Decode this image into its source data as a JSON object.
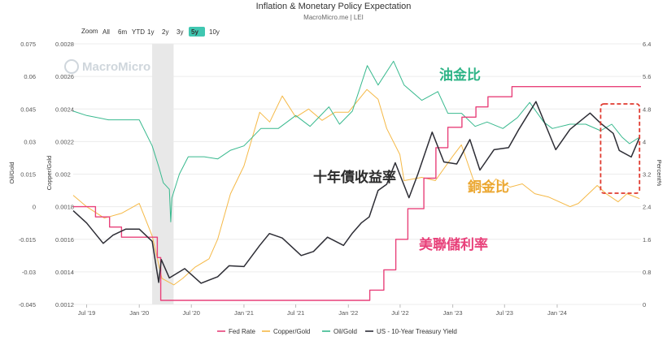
{
  "page": {
    "title": "Inflation & Monetary Policy Expectation",
    "subtitle": "MacroMicro.me | LEI",
    "watermark": "MacroMicro"
  },
  "zoom": {
    "label": "Zoom",
    "options": [
      "All",
      "6m",
      "YTD",
      "1y",
      "2y",
      "3y",
      "5y",
      "10y"
    ],
    "selected": "5y"
  },
  "colors": {
    "fed_rate": "#e8417a",
    "copper_gold": "#f5b947",
    "oil_gold": "#38b98e",
    "treasury": "#2d2d35",
    "anno_oil": "#2fb487",
    "anno_copper": "#eba731",
    "anno_treasury": "#2b2b2b",
    "anno_fed": "#e8417a",
    "highlight_box": "#e03a2f",
    "recession_band": "#e8e8e8"
  },
  "annotations": {
    "oil_gold": "油金比",
    "copper_gold": "銅金比",
    "treasury": "十年債收益率",
    "fed_rate": "美聯儲利率"
  },
  "chart_data": {
    "type": "line",
    "title": "Inflation & Monetary Policy Expectation",
    "subtitle": "MacroMicro.me | LEI",
    "x_range": [
      "2019-05-15",
      "2024-10-20"
    ],
    "x_ticks": [
      "Jul '19",
      "Jan '20",
      "Jul '20",
      "Jan '21",
      "Jul '21",
      "Jan '22",
      "Jul '22",
      "Jan '23",
      "Jul '23",
      "Jan '24"
    ],
    "axes": {
      "oil_gold": {
        "label": "Oil/Gold",
        "min": -0.045,
        "max": 0.075,
        "ticks": [
          "0.075",
          "0.06",
          "0.045",
          "0.03",
          "0.015",
          "0",
          "-0.015",
          "-0.03",
          "-0.045"
        ]
      },
      "copper_gold": {
        "label": "Copper/Gold",
        "min": 0.0012,
        "max": 0.0028,
        "ticks": [
          "0.0028",
          "0.0026",
          "0.0024",
          "0.0022",
          "0.002",
          "0.0018",
          "0.0016",
          "0.0014",
          "0.0012"
        ]
      },
      "percent": {
        "label": "Percent%",
        "min": 0,
        "max": 6.4,
        "ticks": [
          "6.4",
          "5.6",
          "4.8",
          "4",
          "3.2",
          "2.4",
          "1.6",
          "0.8",
          "0"
        ]
      }
    },
    "shaded_period": [
      "2020-02-15",
      "2020-04-30"
    ],
    "highlight_period": [
      "2024-06-01",
      "2024-10-15"
    ],
    "legend_position": "bottom",
    "series": [
      {
        "name": "Fed Rate",
        "axis": "percent",
        "step": true,
        "points": [
          [
            "2019-05-15",
            2.4
          ],
          [
            "2019-08-01",
            2.15
          ],
          [
            "2019-09-19",
            1.9
          ],
          [
            "2019-10-31",
            1.65
          ],
          [
            "2020-03-04",
            1.15
          ],
          [
            "2020-03-16",
            0.1
          ],
          [
            "2022-03-17",
            0.35
          ],
          [
            "2022-05-05",
            0.85
          ],
          [
            "2022-06-16",
            1.6
          ],
          [
            "2022-07-28",
            2.35
          ],
          [
            "2022-09-22",
            3.1
          ],
          [
            "2022-11-03",
            3.85
          ],
          [
            "2022-12-15",
            4.35
          ],
          [
            "2023-02-02",
            4.6
          ],
          [
            "2023-03-23",
            4.85
          ],
          [
            "2023-05-04",
            5.1
          ],
          [
            "2023-07-27",
            5.35
          ],
          [
            "2024-09-19",
            5.35
          ],
          [
            "2024-10-20",
            5.35
          ]
        ]
      },
      {
        "name": "Copper/Gold",
        "axis": "copper_gold",
        "points": [
          [
            "2019-05-15",
            0.00187
          ],
          [
            "2019-07-01",
            0.0018
          ],
          [
            "2019-09-01",
            0.00173
          ],
          [
            "2019-11-01",
            0.00176
          ],
          [
            "2020-01-01",
            0.00182
          ],
          [
            "2020-02-15",
            0.00162
          ],
          [
            "2020-03-20",
            0.00136
          ],
          [
            "2020-05-01",
            0.00132
          ],
          [
            "2020-06-01",
            0.00136
          ],
          [
            "2020-07-15",
            0.00143
          ],
          [
            "2020-09-01",
            0.00148
          ],
          [
            "2020-10-01",
            0.0016
          ],
          [
            "2020-11-15",
            0.00188
          ],
          [
            "2021-01-01",
            0.00205
          ],
          [
            "2021-02-25",
            0.00238
          ],
          [
            "2021-04-01",
            0.00232
          ],
          [
            "2021-05-15",
            0.00248
          ],
          [
            "2021-07-01",
            0.00235
          ],
          [
            "2021-08-15",
            0.0024
          ],
          [
            "2021-10-01",
            0.00233
          ],
          [
            "2021-11-15",
            0.00238
          ],
          [
            "2022-01-01",
            0.00238
          ],
          [
            "2022-03-07",
            0.00252
          ],
          [
            "2022-04-15",
            0.00246
          ],
          [
            "2022-05-15",
            0.00228
          ],
          [
            "2022-06-30",
            0.00212
          ],
          [
            "2022-07-15",
            0.00196
          ],
          [
            "2022-09-15",
            0.00198
          ],
          [
            "2022-11-01",
            0.00196
          ],
          [
            "2023-01-01",
            0.00211
          ],
          [
            "2023-01-31",
            0.00218
          ],
          [
            "2023-03-15",
            0.00196
          ],
          [
            "2023-05-01",
            0.0019
          ],
          [
            "2023-06-01",
            0.00197
          ],
          [
            "2023-07-20",
            0.00192
          ],
          [
            "2023-09-01",
            0.00194
          ],
          [
            "2023-10-15",
            0.00188
          ],
          [
            "2023-12-01",
            0.00186
          ],
          [
            "2024-02-15",
            0.0018
          ],
          [
            "2024-03-15",
            0.00182
          ],
          [
            "2024-05-20",
            0.00193
          ],
          [
            "2024-06-20",
            0.00188
          ],
          [
            "2024-08-01",
            0.00183
          ],
          [
            "2024-09-01",
            0.00188
          ],
          [
            "2024-10-15",
            0.00185
          ]
        ]
      },
      {
        "name": "Oil/Gold",
        "axis": "oil_gold",
        "points": [
          [
            "2019-05-15",
            0.044
          ],
          [
            "2019-07-01",
            0.042
          ],
          [
            "2019-09-15",
            0.04
          ],
          [
            "2019-11-01",
            0.04
          ],
          [
            "2020-01-01",
            0.04
          ],
          [
            "2020-02-15",
            0.028
          ],
          [
            "2020-03-10",
            0.018
          ],
          [
            "2020-03-25",
            0.011
          ],
          [
            "2020-04-15",
            0.008
          ],
          [
            "2020-04-20",
            -0.007
          ],
          [
            "2020-04-24",
            0.004
          ],
          [
            "2020-05-20",
            0.015
          ],
          [
            "2020-06-20",
            0.023
          ],
          [
            "2020-08-15",
            0.023
          ],
          [
            "2020-10-01",
            0.022
          ],
          [
            "2020-11-15",
            0.026
          ],
          [
            "2021-01-01",
            0.028
          ],
          [
            "2021-03-01",
            0.036
          ],
          [
            "2021-05-01",
            0.036
          ],
          [
            "2021-07-01",
            0.042
          ],
          [
            "2021-08-20",
            0.037
          ],
          [
            "2021-10-25",
            0.046
          ],
          [
            "2021-12-01",
            0.038
          ],
          [
            "2022-01-15",
            0.044
          ],
          [
            "2022-03-08",
            0.065
          ],
          [
            "2022-04-15",
            0.056
          ],
          [
            "2022-06-08",
            0.067
          ],
          [
            "2022-07-15",
            0.056
          ],
          [
            "2022-09-15",
            0.049
          ],
          [
            "2022-11-10",
            0.053
          ],
          [
            "2022-12-15",
            0.043
          ],
          [
            "2023-02-01",
            0.043
          ],
          [
            "2023-03-20",
            0.037
          ],
          [
            "2023-05-01",
            0.039
          ],
          [
            "2023-06-25",
            0.036
          ],
          [
            "2023-08-15",
            0.041
          ],
          [
            "2023-09-27",
            0.048
          ],
          [
            "2023-11-15",
            0.039
          ],
          [
            "2023-12-15",
            0.036
          ],
          [
            "2024-02-15",
            0.038
          ],
          [
            "2024-04-10",
            0.038
          ],
          [
            "2024-06-01",
            0.035
          ],
          [
            "2024-07-10",
            0.038
          ],
          [
            "2024-08-15",
            0.032
          ],
          [
            "2024-09-10",
            0.029
          ],
          [
            "2024-10-15",
            0.032
          ]
        ]
      },
      {
        "name": "US - 10-Year Treasury Yield",
        "axis": "percent",
        "points": [
          [
            "2019-05-15",
            2.3
          ],
          [
            "2019-07-01",
            2.0
          ],
          [
            "2019-08-28",
            1.5
          ],
          [
            "2019-10-01",
            1.7
          ],
          [
            "2019-11-15",
            1.85
          ],
          [
            "2020-01-01",
            1.85
          ],
          [
            "2020-02-15",
            1.55
          ],
          [
            "2020-03-09",
            0.54
          ],
          [
            "2020-03-18",
            1.1
          ],
          [
            "2020-04-15",
            0.65
          ],
          [
            "2020-06-08",
            0.88
          ],
          [
            "2020-08-04",
            0.52
          ],
          [
            "2020-10-01",
            0.68
          ],
          [
            "2020-11-10",
            0.95
          ],
          [
            "2021-01-01",
            0.93
          ],
          [
            "2021-02-25",
            1.45
          ],
          [
            "2021-03-31",
            1.74
          ],
          [
            "2021-05-15",
            1.63
          ],
          [
            "2021-07-20",
            1.2
          ],
          [
            "2021-09-01",
            1.3
          ],
          [
            "2021-10-20",
            1.65
          ],
          [
            "2021-12-15",
            1.45
          ],
          [
            "2022-01-15",
            1.75
          ],
          [
            "2022-02-15",
            2.0
          ],
          [
            "2022-03-15",
            2.15
          ],
          [
            "2022-04-15",
            2.8
          ],
          [
            "2022-05-15",
            2.95
          ],
          [
            "2022-06-14",
            3.48
          ],
          [
            "2022-08-01",
            2.62
          ],
          [
            "2022-09-01",
            3.2
          ],
          [
            "2022-10-21",
            4.23
          ],
          [
            "2022-12-01",
            3.5
          ],
          [
            "2023-01-15",
            3.45
          ],
          [
            "2023-03-02",
            4.05
          ],
          [
            "2023-04-06",
            3.3
          ],
          [
            "2023-05-25",
            3.8
          ],
          [
            "2023-07-15",
            3.85
          ],
          [
            "2023-08-20",
            4.3
          ],
          [
            "2023-10-19",
            4.98
          ],
          [
            "2023-12-27",
            3.8
          ],
          [
            "2024-02-15",
            4.3
          ],
          [
            "2024-04-25",
            4.7
          ],
          [
            "2024-06-01",
            4.45
          ],
          [
            "2024-07-15",
            4.2
          ],
          [
            "2024-08-05",
            3.78
          ],
          [
            "2024-09-16",
            3.62
          ],
          [
            "2024-10-15",
            4.1
          ]
        ]
      }
    ]
  }
}
